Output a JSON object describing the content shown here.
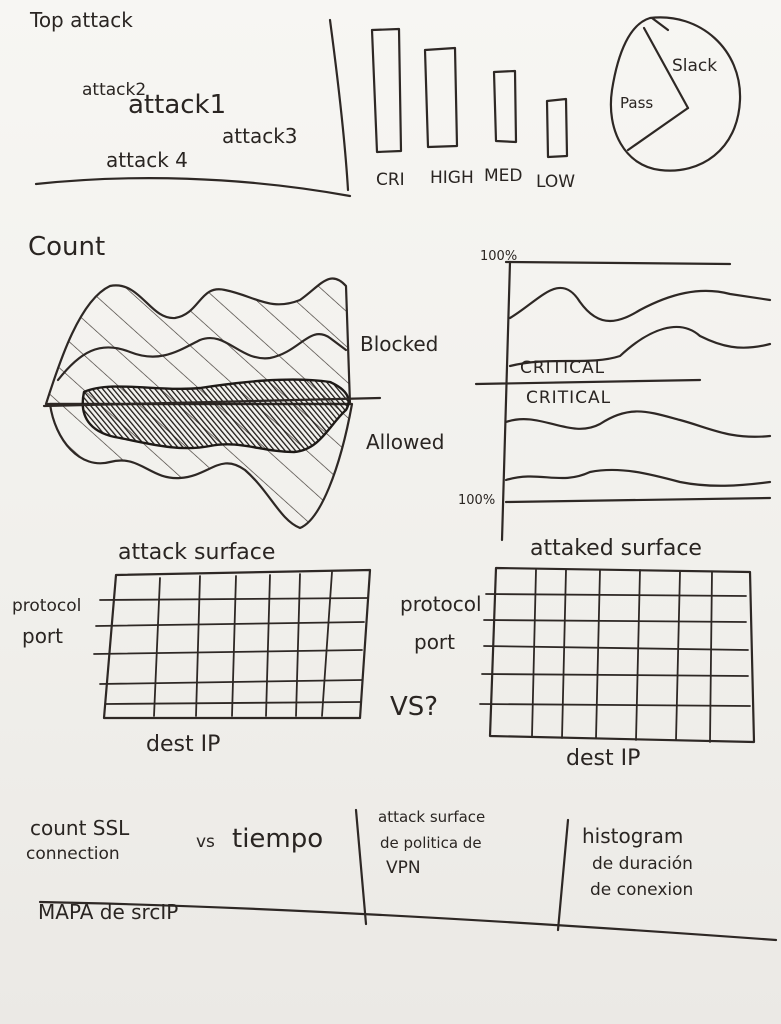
{
  "top_attack": {
    "title": "Top attack",
    "items": [
      "attack2",
      "attack1",
      "attack3",
      "attack 4"
    ]
  },
  "severity": {
    "labels": [
      "CRI",
      "HIGH",
      "MED",
      "LOW"
    ]
  },
  "pie": {
    "labels": [
      "Slack",
      "Pass"
    ]
  },
  "count_panel": {
    "title": "Count",
    "labels": [
      "Blocked",
      "Allowed"
    ]
  },
  "percent_panel": {
    "top_label": "100%",
    "bottom_label": "100%",
    "labels": [
      "CRITICAL",
      "CRITICAL"
    ]
  },
  "attack_surface": {
    "title": "attack surface",
    "ylabel_1": "protocol",
    "ylabel_2": "port",
    "xlabel": "dest IP"
  },
  "attacked_surface": {
    "title": "attaked surface",
    "ylabel_1": "protocol",
    "ylabel_2": "port",
    "xlabel": "dest IP",
    "vs": "VS?"
  },
  "bottom": {
    "ssl_1": "count SSL",
    "ssl_2": "connection",
    "ssl_vs": "vs",
    "ssl_time": "tiempo",
    "vpn_1": "attack surface",
    "vpn_2": "de politica de",
    "vpn_3": "VPN",
    "hist_1": "histogram",
    "hist_2": "de duración",
    "hist_3": "de conexion",
    "map": "MAPA de srcIP"
  }
}
